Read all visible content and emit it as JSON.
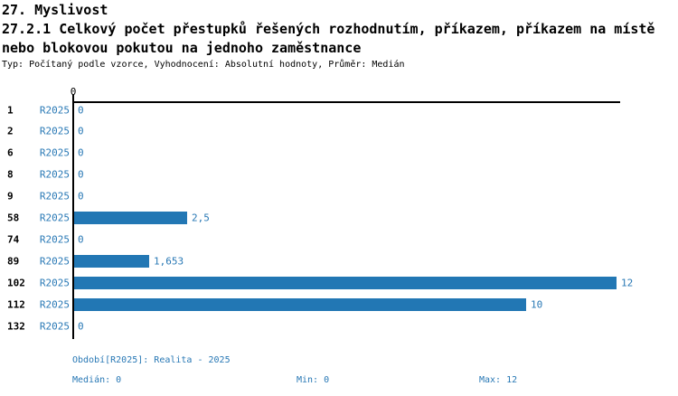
{
  "header": {
    "section": "27. Myslivost",
    "title_line1": "27.2.1 Celkový počet přestupků řešených rozhodnutím, příkazem, příkazem na místě",
    "title_line2": "nebo blokovou pokutou na jednoho zaměstnance",
    "meta": "Typ: Počítaný podle vzorce, Vyhodnocení: Absolutní hodnoty, Průměr: Medián"
  },
  "chart_data": {
    "type": "bar",
    "orientation": "horizontal",
    "title": "27.2.1 Celkový počet přestupků řešených rozhodnutím, příkazem, příkazem na místě nebo blokovou pokutou na jednoho zaměstnance",
    "series_label": "R2025",
    "categories": [
      "1",
      "2",
      "6",
      "8",
      "9",
      "58",
      "74",
      "89",
      "102",
      "112",
      "132"
    ],
    "values": [
      0,
      0,
      0,
      0,
      0,
      2.5,
      0,
      1.653,
      12,
      10,
      0
    ],
    "value_labels": [
      "0",
      "0",
      "0",
      "0",
      "0",
      "2,5",
      "0",
      "1,653",
      "12",
      "10",
      "0"
    ],
    "xlim": [
      0,
      12
    ],
    "x_tick_labels": [
      "0"
    ],
    "grid": false,
    "legend": "none"
  },
  "colors": {
    "bar_blue": "#2277b4",
    "text_blue": "#2878b5",
    "axis_black": "#000000"
  },
  "footer": {
    "period": "Období[R2025]: Realita - 2025",
    "median_label": "Medián: ",
    "median_value": "0",
    "min_label": "Min: ",
    "min_value": "0",
    "max_label": "Max: ",
    "max_value": "12"
  }
}
